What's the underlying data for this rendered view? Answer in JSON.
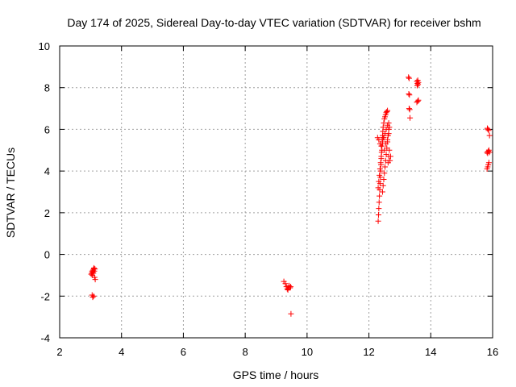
{
  "chart_data": {
    "type": "scatter",
    "title": "Day 174 of 2025, Sidereal Day-to-day VTEC variation (SDTVAR) for receiver bshm",
    "xlabel": "GPS time / hours",
    "ylabel": "SDTVAR / TECUs",
    "xlim": [
      2,
      16
    ],
    "ylim": [
      -4,
      10
    ],
    "xticks": [
      2,
      4,
      6,
      8,
      10,
      12,
      14,
      16
    ],
    "yticks": [
      -4,
      -2,
      0,
      2,
      4,
      6,
      8,
      10
    ],
    "grid": true,
    "marker": "+",
    "color": "#ff0000",
    "series": [
      {
        "name": "bshm",
        "points": [
          [
            3.02,
            -0.95
          ],
          [
            3.04,
            -0.9
          ],
          [
            3.05,
            -0.8
          ],
          [
            3.06,
            -1.0
          ],
          [
            3.07,
            -0.85
          ],
          [
            3.08,
            -0.75
          ],
          [
            3.09,
            -0.9
          ],
          [
            3.1,
            -0.7
          ],
          [
            3.11,
            -0.65
          ],
          [
            3.12,
            -0.8
          ],
          [
            3.13,
            -1.1
          ],
          [
            3.14,
            -0.7
          ],
          [
            3.05,
            -1.95
          ],
          [
            3.07,
            -2.05
          ],
          [
            3.1,
            -2.0
          ],
          [
            3.15,
            -1.2
          ],
          [
            9.25,
            -1.3
          ],
          [
            9.3,
            -1.4
          ],
          [
            9.33,
            -1.55
          ],
          [
            9.36,
            -1.65
          ],
          [
            9.38,
            -1.7
          ],
          [
            9.4,
            -1.6
          ],
          [
            9.42,
            -1.5
          ],
          [
            9.45,
            -1.6
          ],
          [
            9.47,
            -1.55
          ],
          [
            9.48,
            -2.85
          ],
          [
            12.3,
            1.6
          ],
          [
            12.31,
            1.9
          ],
          [
            12.32,
            2.2
          ],
          [
            12.33,
            2.5
          ],
          [
            12.34,
            2.8
          ],
          [
            12.35,
            3.1
          ],
          [
            12.36,
            3.4
          ],
          [
            12.37,
            3.7
          ],
          [
            12.38,
            4.0
          ],
          [
            12.39,
            4.3
          ],
          [
            12.4,
            4.6
          ],
          [
            12.41,
            4.9
          ],
          [
            12.42,
            5.2
          ],
          [
            12.43,
            5.5
          ],
          [
            12.44,
            5.7
          ],
          [
            12.45,
            5.9
          ],
          [
            12.46,
            6.1
          ],
          [
            12.48,
            6.3
          ],
          [
            12.5,
            6.5
          ],
          [
            12.52,
            6.6
          ],
          [
            12.54,
            6.7
          ],
          [
            12.56,
            6.8
          ],
          [
            12.58,
            6.85
          ],
          [
            12.6,
            6.9
          ],
          [
            12.3,
            3.2
          ],
          [
            12.32,
            3.5
          ],
          [
            12.34,
            3.8
          ],
          [
            12.36,
            4.1
          ],
          [
            12.38,
            4.4
          ],
          [
            12.4,
            4.7
          ],
          [
            12.42,
            5.0
          ],
          [
            12.44,
            5.3
          ],
          [
            12.46,
            5.6
          ],
          [
            12.28,
            5.6
          ],
          [
            12.32,
            5.5
          ],
          [
            12.36,
            5.3
          ],
          [
            12.4,
            5.2
          ],
          [
            12.44,
            5.4
          ],
          [
            12.48,
            5.6
          ],
          [
            12.52,
            5.8
          ],
          [
            12.56,
            6.0
          ],
          [
            12.6,
            6.2
          ],
          [
            12.64,
            6.3
          ],
          [
            12.44,
            3.0
          ],
          [
            12.46,
            3.3
          ],
          [
            12.48,
            3.6
          ],
          [
            12.5,
            3.9
          ],
          [
            12.52,
            4.2
          ],
          [
            12.54,
            4.5
          ],
          [
            12.56,
            4.8
          ],
          [
            12.58,
            5.1
          ],
          [
            12.6,
            5.4
          ],
          [
            12.62,
            5.7
          ],
          [
            12.64,
            6.0
          ],
          [
            12.5,
            5.0
          ],
          [
            12.55,
            5.3
          ],
          [
            12.6,
            5.5
          ],
          [
            12.64,
            5.8
          ],
          [
            12.66,
            6.1
          ],
          [
            12.62,
            4.4
          ],
          [
            12.64,
            4.7
          ],
          [
            12.66,
            5.0
          ],
          [
            12.68,
            4.5
          ],
          [
            12.7,
            4.7
          ],
          [
            13.28,
            8.5
          ],
          [
            13.3,
            8.45
          ],
          [
            13.29,
            7.7
          ],
          [
            13.31,
            7.65
          ],
          [
            13.3,
            7.0
          ],
          [
            13.32,
            6.95
          ],
          [
            13.33,
            6.55
          ],
          [
            13.55,
            8.3
          ],
          [
            13.57,
            8.2
          ],
          [
            13.58,
            8.35
          ],
          [
            13.6,
            8.25
          ],
          [
            13.56,
            8.1
          ],
          [
            13.59,
            8.15
          ],
          [
            13.55,
            7.3
          ],
          [
            13.58,
            7.35
          ],
          [
            13.6,
            7.4
          ],
          [
            15.83,
            6.05
          ],
          [
            15.85,
            6.0
          ],
          [
            15.87,
            5.95
          ],
          [
            15.9,
            5.7
          ],
          [
            15.82,
            4.9
          ],
          [
            15.84,
            4.85
          ],
          [
            15.86,
            4.95
          ],
          [
            15.88,
            5.0
          ],
          [
            15.9,
            4.9
          ],
          [
            15.82,
            4.1
          ],
          [
            15.84,
            4.2
          ],
          [
            15.86,
            4.3
          ],
          [
            15.88,
            4.4
          ]
        ]
      }
    ]
  }
}
